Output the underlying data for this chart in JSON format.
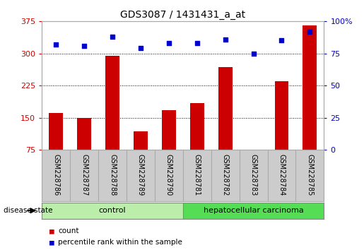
{
  "title": "GDS3087 / 1431431_a_at",
  "samples": [
    "GSM228786",
    "GSM228787",
    "GSM228788",
    "GSM228789",
    "GSM228790",
    "GSM228781",
    "GSM228782",
    "GSM228783",
    "GSM228784",
    "GSM228785"
  ],
  "counts": [
    162,
    150,
    295,
    118,
    168,
    185,
    268,
    75,
    235,
    365
  ],
  "percentiles": [
    82,
    81,
    88,
    79,
    83,
    83,
    86,
    75,
    85,
    92
  ],
  "ylim_left": [
    75,
    375
  ],
  "ylim_right": [
    0,
    100
  ],
  "yticks_left": [
    75,
    150,
    225,
    300,
    375
  ],
  "yticks_right": [
    0,
    25,
    50,
    75,
    100
  ],
  "bar_color": "#cc0000",
  "dot_color": "#0000cc",
  "control_color": "#bbeeaa",
  "carcinoma_color": "#55dd55",
  "label_color_left": "#cc0000",
  "label_color_right": "#0000cc",
  "grid_color": "#000000",
  "bg_color": "#ffffff",
  "tick_area_color": "#cccccc",
  "disease_state_label": "disease state",
  "legend_count": "count",
  "legend_percentile": "percentile rank within the sample",
  "n_control": 5,
  "n_total": 10
}
